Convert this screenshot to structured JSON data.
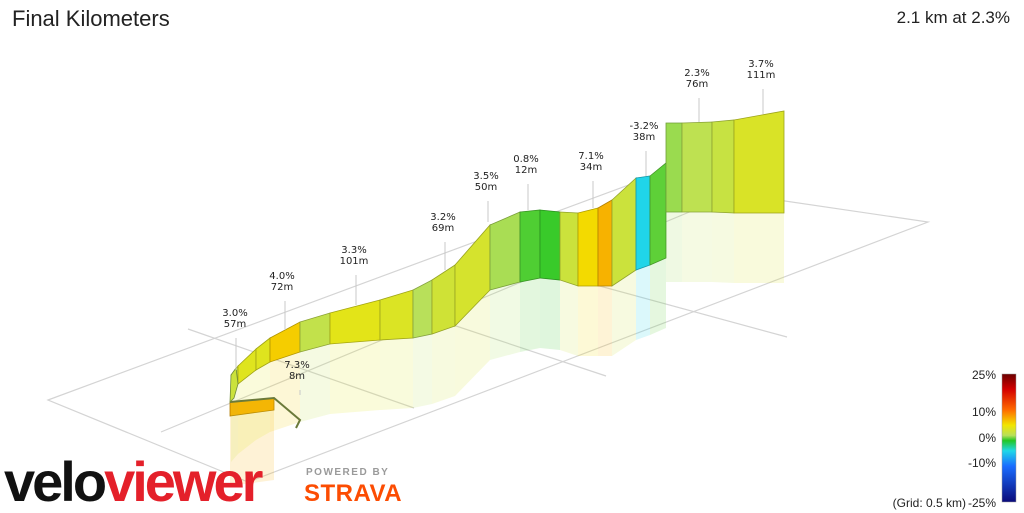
{
  "header": {
    "title": "Final Kilometers",
    "summary": "2.1 km at 2.3%"
  },
  "chart_data": {
    "type": "area",
    "title": "Final Kilometers",
    "subtitle": "2.1 km at 2.3%",
    "segments": [
      {
        "gradient": "7.3%",
        "gain": "8m",
        "value": 7.3,
        "gain_m": 8
      },
      {
        "gradient": "3.0%",
        "gain": "57m",
        "value": 3.0,
        "gain_m": 57
      },
      {
        "gradient": "4.0%",
        "gain": "72m",
        "value": 4.0,
        "gain_m": 72
      },
      {
        "gradient": "3.3%",
        "gain": "101m",
        "value": 3.3,
        "gain_m": 101
      },
      {
        "gradient": "3.2%",
        "gain": "69m",
        "value": 3.2,
        "gain_m": 69
      },
      {
        "gradient": "3.5%",
        "gain": "50m",
        "value": 3.5,
        "gain_m": 50
      },
      {
        "gradient": "0.8%",
        "gain": "12m",
        "value": 0.8,
        "gain_m": 12
      },
      {
        "gradient": "7.1%",
        "gain": "34m",
        "value": 7.1,
        "gain_m": 34
      },
      {
        "gradient": "-3.2%",
        "gain": "38m",
        "value": -3.2,
        "gain_m": 38
      },
      {
        "gradient": "2.3%",
        "gain": "76m",
        "value": 2.3,
        "gain_m": 76
      },
      {
        "gradient": "3.7%",
        "gain": "111m",
        "value": 3.7,
        "gain_m": 111
      }
    ],
    "color_scale": {
      "ticks": [
        {
          "label": "25%",
          "value": 25
        },
        {
          "label": "10%",
          "value": 10
        },
        {
          "label": "0%",
          "value": 0
        },
        {
          "label": "-10%",
          "value": -10
        },
        {
          "label": "-25%",
          "value": -25
        }
      ]
    },
    "grid_note": "(Grid: 0.5 km)"
  },
  "branding": {
    "logo_part1": "velo",
    "logo_part2": "viewer",
    "powered_by": "POWERED BY",
    "strava": "STRAVA"
  }
}
